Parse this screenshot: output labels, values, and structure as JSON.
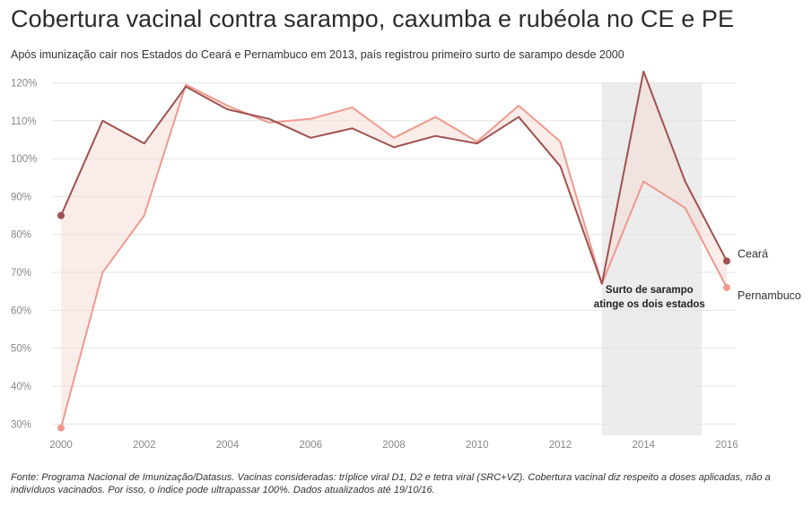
{
  "header": {
    "title": "Cobertura vacinal contra sarampo, caxumba e rubéola no CE e PE",
    "subtitle": "Após imunização cair nos Estados do Ceará e Pernambuco em 2013, país registrou primeiro surto de sarampo desde 2000"
  },
  "footer": {
    "source": "Fonte: Programa Nacional de Imunização/Datasus. Vacinas consideradas: tríplice viral D1, D2 e tetra viral (SRC+VZ). Cobertura vacinal diz respeito a doses aplicadas, não a indivíduos vacinados. Por isso, o índice pode ultrapassar 100%. Dados atualizados até 19/10/16."
  },
  "chart_data": {
    "type": "line",
    "title": "Cobertura vacinal contra sarampo, caxumba e rubéola no CE e PE",
    "subtitle": "Após imunização cair nos Estados do Ceará e Pernambuco em 2013, país registrou primeiro surto de sarampo desde 2000",
    "x": [
      2000,
      2001,
      2002,
      2003,
      2004,
      2005,
      2006,
      2007,
      2008,
      2009,
      2010,
      2011,
      2012,
      2013,
      2014,
      2015,
      2016
    ],
    "xlim": [
      2000,
      2016
    ],
    "ylim": [
      27,
      122
    ],
    "y_unit": "%",
    "x_ticks": [
      2000,
      2002,
      2004,
      2006,
      2008,
      2010,
      2012,
      2014,
      2016
    ],
    "y_ticks": [
      30,
      40,
      50,
      60,
      70,
      80,
      90,
      100,
      110,
      120
    ],
    "y_tick_labels": [
      "30%",
      "40%",
      "50%",
      "60%",
      "70%",
      "80%",
      "90%",
      "100%",
      "110%",
      "120%"
    ],
    "grid": true,
    "series": [
      {
        "name": "Ceará",
        "color": "#a0524f",
        "values": [
          85,
          110,
          104,
          119,
          113,
          110.5,
          105.5,
          108,
          103,
          106,
          104,
          111,
          98,
          67,
          123,
          94,
          73
        ]
      },
      {
        "name": "Pernambuco",
        "color": "#ee9a8e",
        "values": [
          29,
          70,
          85,
          119.5,
          114,
          109.5,
          110.5,
          113.5,
          105.5,
          111,
          104.5,
          114,
          104.5,
          67,
          94,
          87,
          66
        ]
      }
    ],
    "shaded_region": {
      "x_start": 2013,
      "x_end": 2015.4
    },
    "annotations": [
      {
        "text": "Surto de sarampo",
        "x": 2014.4
      },
      {
        "text": "atinge os dois estados",
        "x": 2014.4
      }
    ]
  }
}
